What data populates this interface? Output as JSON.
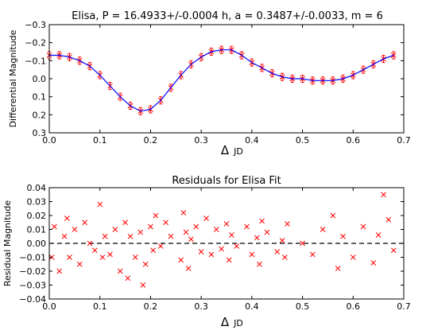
{
  "chart_data": [
    {
      "type": "scatter",
      "title": "Elisa, P = 16.4933+/-0.0004 h, a = 0.3487+/-0.0033, m = 6",
      "xlabel_symbol": "Δ",
      "xlabel": "JD",
      "ylabel": "Differential Magnitude",
      "xlim": [
        0.0,
        0.7
      ],
      "ylim": [
        0.3,
        -0.3
      ],
      "y_inverted": true,
      "xticks": [
        "0.0",
        "0.1",
        "0.2",
        "0.3",
        "0.4",
        "0.5",
        "0.6",
        "0.7"
      ],
      "yticks": [
        "−0.3",
        "−0.2",
        "−0.1",
        "0.0",
        "0.1",
        "0.2",
        "0.3"
      ],
      "grid": false,
      "series": [
        {
          "marker": "x-with-errorbars",
          "color": "#ff0000",
          "x": [
            0.0,
            0.02,
            0.04,
            0.06,
            0.08,
            0.1,
            0.12,
            0.14,
            0.16,
            0.18,
            0.2,
            0.22,
            0.24,
            0.26,
            0.28,
            0.3,
            0.32,
            0.34,
            0.36,
            0.38,
            0.4,
            0.42,
            0.44,
            0.46,
            0.48,
            0.5,
            0.52,
            0.54,
            0.56,
            0.58,
            0.6,
            0.62,
            0.64,
            0.66,
            0.68
          ],
          "y": [
            -0.13,
            -0.13,
            -0.12,
            -0.1,
            -0.07,
            -0.02,
            0.04,
            0.1,
            0.15,
            0.18,
            0.17,
            0.12,
            0.05,
            -0.02,
            -0.08,
            -0.12,
            -0.15,
            -0.16,
            -0.16,
            -0.13,
            -0.09,
            -0.06,
            -0.03,
            -0.01,
            0.0,
            0.0,
            0.01,
            0.01,
            0.01,
            0.0,
            -0.02,
            -0.05,
            -0.08,
            -0.11,
            -0.13
          ],
          "error": 0.02
        },
        {
          "marker": "line",
          "color": "#0000ff",
          "x": [
            0.0,
            0.02,
            0.04,
            0.06,
            0.08,
            0.1,
            0.12,
            0.14,
            0.16,
            0.18,
            0.2,
            0.22,
            0.24,
            0.26,
            0.28,
            0.3,
            0.32,
            0.34,
            0.36,
            0.38,
            0.4,
            0.42,
            0.44,
            0.46,
            0.48,
            0.5,
            0.52,
            0.54,
            0.56,
            0.58,
            0.6,
            0.62,
            0.64,
            0.66,
            0.68
          ],
          "y": [
            -0.13,
            -0.13,
            -0.12,
            -0.1,
            -0.07,
            -0.02,
            0.04,
            0.1,
            0.15,
            0.18,
            0.17,
            0.12,
            0.05,
            -0.02,
            -0.08,
            -0.12,
            -0.15,
            -0.16,
            -0.16,
            -0.13,
            -0.09,
            -0.06,
            -0.03,
            -0.01,
            0.0,
            0.0,
            0.01,
            0.01,
            0.01,
            0.0,
            -0.02,
            -0.05,
            -0.08,
            -0.11,
            -0.13
          ]
        }
      ]
    },
    {
      "type": "scatter",
      "title": "Residuals for Elisa Fit",
      "xlabel_symbol": "Δ",
      "xlabel": "JD",
      "ylabel": "Residual Magnitude",
      "xlim": [
        0.0,
        0.7
      ],
      "ylim": [
        -0.04,
        0.04
      ],
      "xticks": [
        "0.0",
        "0.1",
        "0.2",
        "0.3",
        "0.4",
        "0.5",
        "0.6",
        "0.7"
      ],
      "yticks": [
        "0.04",
        "0.03",
        "0.02",
        "0.01",
        "0.00",
        "−0.01",
        "−0.02",
        "−0.03",
        "−0.04"
      ],
      "grid": false,
      "zero_line": {
        "y": 0.0,
        "style": "dashed",
        "color": "#000000"
      },
      "series": [
        {
          "marker": "x",
          "color": "#ff0000",
          "x": [
            0.005,
            0.01,
            0.02,
            0.03,
            0.035,
            0.04,
            0.05,
            0.06,
            0.07,
            0.08,
            0.09,
            0.1,
            0.105,
            0.11,
            0.12,
            0.13,
            0.14,
            0.15,
            0.155,
            0.16,
            0.17,
            0.18,
            0.185,
            0.19,
            0.2,
            0.205,
            0.21,
            0.22,
            0.23,
            0.24,
            0.26,
            0.265,
            0.27,
            0.275,
            0.28,
            0.29,
            0.3,
            0.31,
            0.32,
            0.33,
            0.34,
            0.35,
            0.355,
            0.36,
            0.37,
            0.39,
            0.4,
            0.41,
            0.415,
            0.42,
            0.43,
            0.45,
            0.46,
            0.465,
            0.47,
            0.5,
            0.52,
            0.54,
            0.56,
            0.57,
            0.58,
            0.6,
            0.62,
            0.64,
            0.65,
            0.66,
            0.67,
            0.68
          ],
          "y": [
            -0.01,
            0.012,
            -0.02,
            0.005,
            0.018,
            -0.01,
            0.01,
            -0.015,
            0.015,
            0.0,
            -0.005,
            0.028,
            -0.01,
            0.005,
            -0.008,
            0.01,
            -0.02,
            0.015,
            -0.025,
            0.005,
            -0.01,
            0.008,
            -0.03,
            -0.015,
            0.012,
            -0.005,
            0.02,
            -0.002,
            0.015,
            0.005,
            -0.012,
            0.022,
            0.008,
            -0.018,
            0.003,
            0.012,
            -0.006,
            0.018,
            -0.008,
            0.01,
            -0.004,
            0.014,
            -0.012,
            0.006,
            -0.002,
            0.012,
            -0.008,
            0.004,
            -0.015,
            0.016,
            0.008,
            -0.006,
            0.002,
            -0.01,
            0.014,
            0.0,
            -0.008,
            0.01,
            0.02,
            -0.018,
            0.005,
            -0.01,
            0.012,
            -0.014,
            0.006,
            0.035,
            0.017,
            -0.005
          ]
        }
      ]
    }
  ]
}
